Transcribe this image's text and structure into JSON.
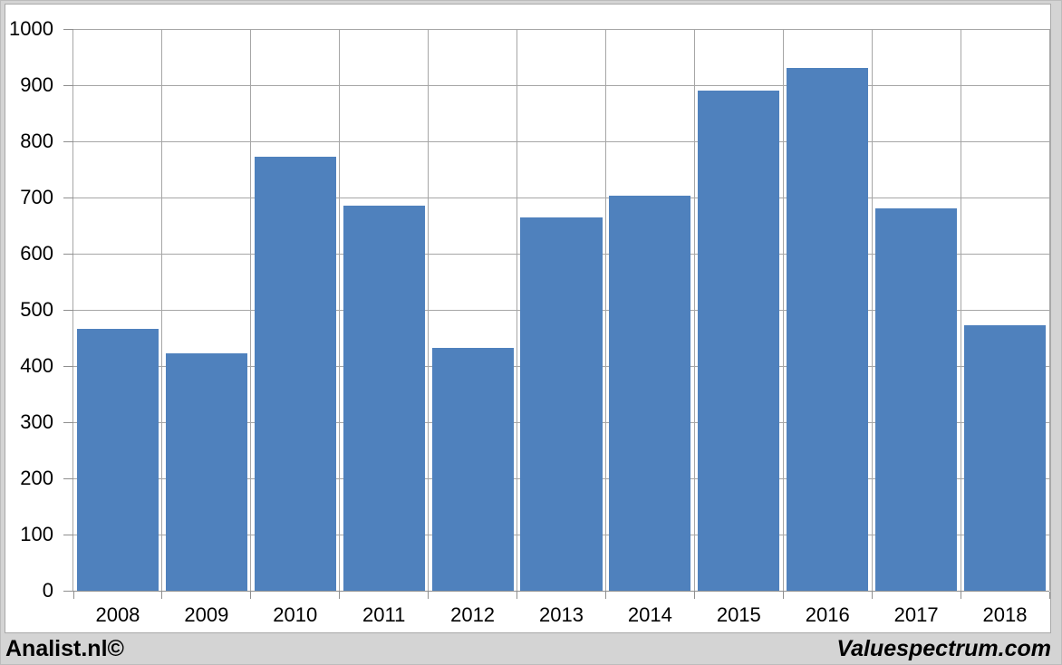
{
  "chart_data": {
    "type": "bar",
    "title": "",
    "xlabel": "",
    "ylabel": "",
    "categories": [
      "2008",
      "2009",
      "2010",
      "2011",
      "2012",
      "2013",
      "2014",
      "2015",
      "2016",
      "2017",
      "2018"
    ],
    "values": [
      466,
      423,
      773,
      685,
      433,
      665,
      703,
      891,
      931,
      680,
      473
    ],
    "ylim": [
      0,
      1000
    ],
    "yticks": [
      0,
      100,
      200,
      300,
      400,
      500,
      600,
      700,
      800,
      900,
      1000
    ],
    "grid": "horizontal-and-vertical",
    "legend": null,
    "bar_color": "#4f81bd",
    "bar_width_fraction": 0.92
  },
  "footer": {
    "left": "Analist.nl©",
    "right": "Valuespectrum.com"
  },
  "colors": {
    "background": "#d4d4d4",
    "panel": "#ffffff",
    "panel_border": "#a9a9a9",
    "grid": "#a6a6a6",
    "axis": "#8f8f8f",
    "text": "#000000",
    "bar": "#4f81bd"
  }
}
